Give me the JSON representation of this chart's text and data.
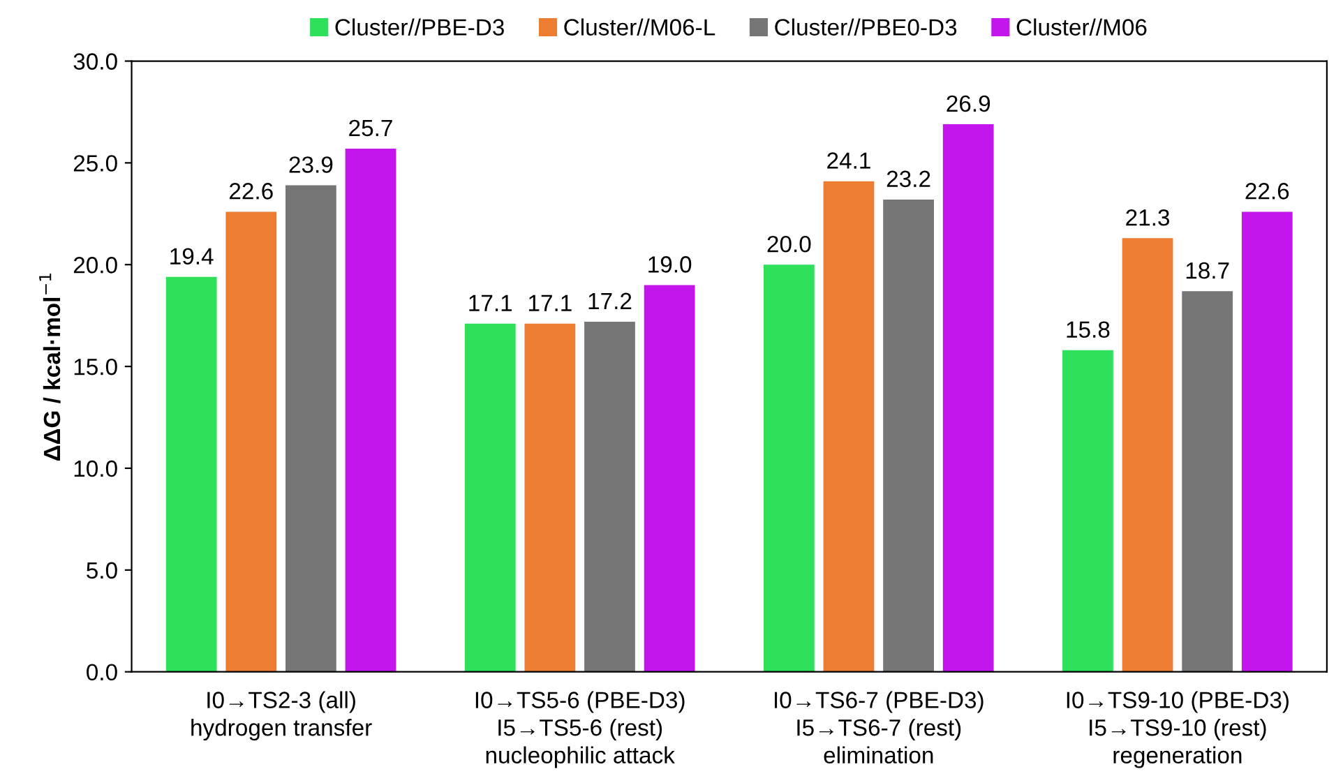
{
  "chart_data": {
    "type": "bar",
    "ylabel": "ΔΔG / kcal·mol$^{−1}$",
    "categories": [
      "I0→TS2-3 (all)\nhydrogen transfer",
      "I0→TS5-6 (PBE-D3)\nI5→TS5-6 (rest)\nnucleophilic attack",
      "I0→TS6-7 (PBE-D3)\nI5→TS6-7 (rest)\nelimination",
      "I0→TS9-10 (PBE-D3)\nI5→TS9-10 (rest)\nregeneration"
    ],
    "series": [
      {
        "name": "Cluster//PBE-D3",
        "color": "#2ee05a",
        "values": [
          19.4,
          17.1,
          20.0,
          15.8
        ],
        "value_labels": [
          "19.4",
          "17.1",
          "20.0",
          "15.8"
        ]
      },
      {
        "name": "Cluster//M06-L",
        "color": "#ed7d31",
        "values": [
          22.6,
          17.1,
          24.1,
          21.3
        ],
        "value_labels": [
          "22.6",
          "17.1",
          "24.1",
          "21.3"
        ]
      },
      {
        "name": "Cluster//PBE0-D3",
        "color": "#767676",
        "values": [
          23.9,
          17.2,
          23.2,
          18.7
        ],
        "value_labels": [
          "23.9",
          "17.2",
          "23.2",
          "18.7"
        ]
      },
      {
        "name": "Cluster//M06",
        "color": "#c316ed",
        "values": [
          25.7,
          19.0,
          26.9,
          22.6
        ],
        "value_labels": [
          "25.7",
          "19.0",
          "26.9",
          "22.6"
        ]
      }
    ],
    "ylim": [
      0,
      30
    ],
    "yticks": [
      {
        "value": 0,
        "label": "0.0"
      },
      {
        "value": 5,
        "label": "5.0"
      },
      {
        "value": 10,
        "label": "10.0"
      },
      {
        "value": 15,
        "label": "15.0"
      },
      {
        "value": 20,
        "label": "20.0"
      },
      {
        "value": 25,
        "label": "25.0"
      },
      {
        "value": 30,
        "label": "30.0"
      }
    ],
    "legend": "top",
    "grid": false
  }
}
